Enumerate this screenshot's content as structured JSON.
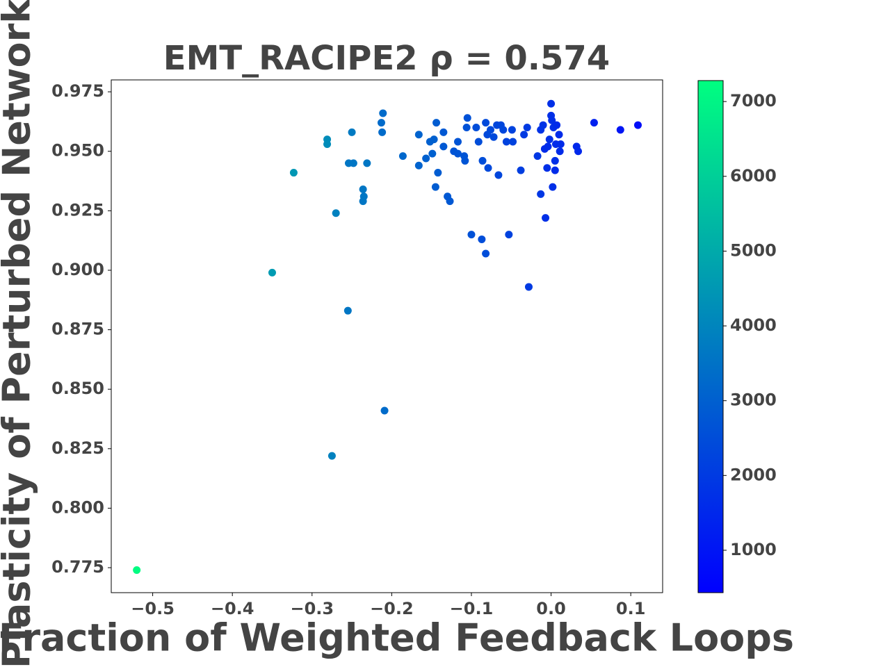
{
  "chart_data": {
    "type": "scatter",
    "title": "EMT_RACIPE2  ρ = 0.574",
    "xlabel": "Fraction of Weighted Feedback Loops",
    "ylabel": "Plasticity of Perturbed Network",
    "colormap": "winter",
    "clim": [
      433,
      7280
    ],
    "cticks": [
      1000,
      2000,
      3000,
      4000,
      5000,
      6000,
      7000
    ],
    "xlim": [
      -0.552,
      0.14
    ],
    "ylim": [
      0.7645,
      0.98
    ],
    "xticks": [
      {
        "value": -0.5,
        "label": "−0.5"
      },
      {
        "value": -0.4,
        "label": "−0.4"
      },
      {
        "value": -0.3,
        "label": "−0.3"
      },
      {
        "value": -0.2,
        "label": "−0.2"
      },
      {
        "value": -0.1,
        "label": "−0.1"
      },
      {
        "value": 0.0,
        "label": "0.0"
      },
      {
        "value": 0.1,
        "label": "0.1"
      }
    ],
    "yticks": [
      {
        "value": 0.775,
        "label": "0.775"
      },
      {
        "value": 0.8,
        "label": "0.800"
      },
      {
        "value": 0.825,
        "label": "0.825"
      },
      {
        "value": 0.85,
        "label": "0.850"
      },
      {
        "value": 0.875,
        "label": "0.875"
      },
      {
        "value": 0.9,
        "label": "0.900"
      },
      {
        "value": 0.925,
        "label": "0.925"
      },
      {
        "value": 0.95,
        "label": "0.950"
      },
      {
        "value": 0.975,
        "label": "0.975"
      }
    ],
    "x": [
      -0.52,
      -0.35,
      -0.323,
      -0.281,
      -0.281,
      -0.27,
      -0.275,
      -0.255,
      -0.25,
      -0.254,
      -0.248,
      -0.231,
      -0.236,
      -0.235,
      -0.236,
      -0.209,
      -0.211,
      -0.213,
      -0.212,
      -0.186,
      -0.166,
      -0.166,
      -0.157,
      -0.152,
      -0.149,
      -0.147,
      -0.144,
      -0.145,
      -0.142,
      -0.135,
      -0.135,
      -0.13,
      -0.127,
      -0.122,
      -0.117,
      -0.117,
      -0.109,
      -0.108,
      -0.105,
      -0.106,
      -0.1,
      -0.094,
      -0.091,
      -0.087,
      -0.086,
      -0.082,
      -0.082,
      -0.079,
      -0.08,
      -0.076,
      -0.072,
      -0.068,
      -0.066,
      -0.063,
      -0.06,
      -0.056,
      -0.053,
      -0.049,
      -0.048,
      -0.038,
      -0.034,
      -0.03,
      -0.028,
      -0.017,
      -0.013,
      -0.013,
      -0.01,
      -0.007,
      -0.005,
      0.0,
      0.0,
      0.001,
      -0.002,
      0.003,
      0.005,
      0.002,
      0.005,
      0.007,
      0.01,
      0.012,
      0.011,
      -0.008,
      -0.004,
      0.006,
      0.032,
      0.034,
      0.054,
      0.087,
      0.109
    ],
    "values": [
      0.774,
      0.899,
      0.941,
      0.955,
      0.953,
      0.924,
      0.822,
      0.883,
      0.958,
      0.945,
      0.945,
      0.945,
      0.934,
      0.931,
      0.929,
      0.841,
      0.966,
      0.962,
      0.958,
      0.948,
      0.957,
      0.944,
      0.947,
      0.954,
      0.949,
      0.955,
      0.962,
      0.935,
      0.941,
      0.958,
      0.952,
      0.931,
      0.929,
      0.95,
      0.954,
      0.949,
      0.948,
      0.946,
      0.964,
      0.96,
      0.915,
      0.96,
      0.954,
      0.913,
      0.946,
      0.907,
      0.962,
      0.943,
      0.957,
      0.959,
      0.956,
      0.961,
      0.94,
      0.961,
      0.959,
      0.954,
      0.915,
      0.959,
      0.954,
      0.942,
      0.957,
      0.96,
      0.893,
      0.948,
      0.932,
      0.959,
      0.961,
      0.922,
      0.943,
      0.97,
      0.965,
      0.963,
      0.955,
      0.96,
      0.946,
      0.935,
      0.942,
      0.961,
      0.957,
      0.953,
      0.95,
      0.951,
      0.952,
      0.953,
      0.952,
      0.95,
      0.962,
      0.959,
      0.961
    ],
    "color_values": [
      7200,
      4600,
      4500,
      4200,
      4200,
      3900,
      3900,
      3600,
      3700,
      3600,
      3600,
      3600,
      3600,
      3600,
      3600,
      3300,
      3300,
      3300,
      3300,
      3200,
      3100,
      3100,
      3000,
      3000,
      3000,
      3000,
      2900,
      2900,
      2900,
      2800,
      2800,
      2800,
      2800,
      2700,
      2700,
      2700,
      2700,
      2700,
      2600,
      2600,
      2600,
      2500,
      2500,
      2500,
      2500,
      2500,
      2400,
      2400,
      2400,
      2400,
      2400,
      2300,
      2300,
      2300,
      2300,
      2200,
      2200,
      2200,
      2200,
      2100,
      2000,
      2000,
      2000,
      1900,
      1900,
      1800,
      1800,
      1700,
      1700,
      1700,
      1700,
      1700,
      1700,
      1700,
      1700,
      1700,
      1600,
      1600,
      1600,
      1600,
      1600,
      1600,
      1600,
      1600,
      1500,
      1500,
      1300,
      1000,
      800
    ]
  }
}
